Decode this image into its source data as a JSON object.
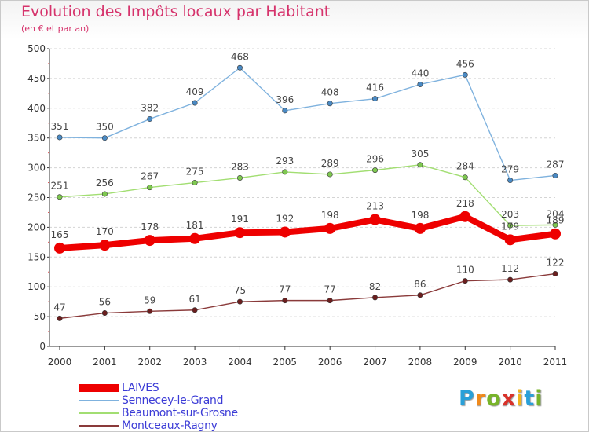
{
  "chart_data": {
    "type": "line",
    "title": "Evolution des Impôts locaux par Habitant",
    "subtitle": "(en € et par an)",
    "xlabel": "",
    "ylabel": "",
    "ylim": [
      0,
      500
    ],
    "yticks": [
      0,
      50,
      100,
      150,
      200,
      250,
      300,
      350,
      400,
      450,
      500
    ],
    "grid": true,
    "legend_position": "bottom-left",
    "categories": [
      "2000",
      "2001",
      "2002",
      "2003",
      "2004",
      "2005",
      "2006",
      "2007",
      "2008",
      "2009",
      "2010",
      "2011"
    ],
    "series": [
      {
        "name": "LAIVES",
        "values": [
          165,
          170,
          178,
          181,
          191,
          192,
          198,
          213,
          198,
          218,
          179,
          189
        ],
        "color": "#ee0000",
        "emphasis": true
      },
      {
        "name": "Sennecey-le-Grand",
        "values": [
          351,
          350,
          382,
          409,
          468,
          396,
          408,
          416,
          440,
          456,
          279,
          287
        ],
        "color": "#7fb2de",
        "point_color": "#4a8ac4",
        "emphasis": false
      },
      {
        "name": "Beaumont-sur-Grosne",
        "values": [
          251,
          256,
          267,
          275,
          283,
          293,
          289,
          296,
          305,
          284,
          203,
          204
        ],
        "color": "#a2de72",
        "point_color": "#7ec850",
        "emphasis": false
      },
      {
        "name": "Montceaux-Ragny",
        "values": [
          47,
          56,
          59,
          61,
          75,
          77,
          77,
          82,
          86,
          110,
          112,
          122
        ],
        "color": "#8a3a3a",
        "point_color": "#6b1e1e",
        "emphasis": false
      }
    ]
  },
  "branding": {
    "logo_letters": [
      "P",
      "r",
      "o",
      "x",
      "i",
      "t",
      "i"
    ],
    "logo_colors": [
      "#2aa0d8",
      "#f08a1c",
      "#78b42a",
      "#d8322a",
      "#f0b41c",
      "#2aa0d8",
      "#78b42a"
    ]
  }
}
